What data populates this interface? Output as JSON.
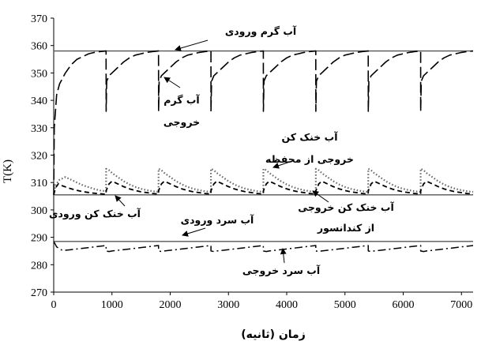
{
  "chart_data": {
    "type": "line",
    "ylabel": "T(K)",
    "xlabel": "زمان (ثانیه)",
    "xlim": [
      0,
      7200
    ],
    "ylim": [
      270,
      370
    ],
    "x_ticks": [
      "0",
      "1000",
      "2000",
      "3000",
      "4000",
      "5000",
      "6000",
      "7000"
    ],
    "y_ticks": [
      "270",
      "280",
      "290",
      "300",
      "310",
      "320",
      "330",
      "340",
      "350",
      "360",
      "370"
    ],
    "cycle_period": 900,
    "series": [
      {
        "name": "آب گرم ورودی",
        "style": "solid",
        "x": [
          0,
          7200
        ],
        "y": [
          358,
          358
        ]
      },
      {
        "name": "آب خنک کن ورودی",
        "style": "solid",
        "x": [
          0,
          7200
        ],
        "y": [
          305.5,
          305.5
        ]
      },
      {
        "name": "آب سرد ورودی",
        "style": "solid",
        "x": [
          0,
          7200
        ],
        "y": [
          288.5,
          288.5
        ]
      },
      {
        "name": "آب گرم خروجی",
        "style": "long-dash",
        "x": [
          0,
          10,
          50,
          100,
          200,
          300,
          400,
          500,
          600,
          700,
          800,
          899,
          900,
          910,
          950,
          1000,
          1100,
          1200,
          1300,
          1400,
          1500,
          1600,
          1700,
          1799,
          1800,
          1810,
          1850,
          1900,
          2000,
          2100,
          2200,
          2300,
          2400,
          2500,
          2600,
          2699,
          2700,
          2710,
          2750,
          2800,
          2900,
          3000,
          3100,
          3200,
          3300,
          3400,
          3500,
          3599,
          3600,
          3610,
          3650,
          3700,
          3800,
          3900,
          4000,
          4100,
          4200,
          4300,
          4400,
          4499,
          4500,
          4510,
          4550,
          4600,
          4700,
          4800,
          4900,
          5000,
          5100,
          5200,
          5300,
          5399,
          5400,
          5410,
          5450,
          5500,
          5600,
          5700,
          5800,
          5900,
          6000,
          6100,
          6200,
          6299,
          6300,
          6310,
          6350,
          6400,
          6500,
          6600,
          6700,
          6800,
          6900,
          7000,
          7100,
          7200
        ],
        "y": [
          305.5,
          330,
          342,
          346,
          350,
          353,
          355,
          356,
          357,
          357.5,
          357.8,
          358,
          336,
          347,
          349,
          350,
          352,
          354,
          355.5,
          356.5,
          357,
          357.5,
          357.8,
          358,
          336,
          347,
          349,
          350,
          352,
          354,
          355.5,
          356.5,
          357,
          357.5,
          357.8,
          358,
          336,
          347,
          349,
          350,
          352,
          354,
          355.5,
          356.5,
          357,
          357.5,
          357.8,
          358,
          336,
          347,
          349,
          350,
          352,
          354,
          355.5,
          356.5,
          357,
          357.5,
          357.8,
          358,
          336,
          347,
          349,
          350,
          352,
          354,
          355.5,
          356.5,
          357,
          357.5,
          357.8,
          358,
          336,
          347,
          349,
          350,
          352,
          354,
          355.5,
          356.5,
          357,
          357.5,
          357.8,
          358,
          336,
          347,
          349,
          350,
          352,
          354,
          355.5,
          356.5,
          357,
          357.5,
          357.8,
          358
        ]
      },
      {
        "name": "آب خنک کن خروجی از محفظه",
        "style": "dotted",
        "x": [
          0,
          30,
          100,
          200,
          300,
          400,
          500,
          600,
          700,
          800,
          899,
          900,
          950,
          1000,
          1100,
          1200,
          1300,
          1400,
          1500,
          1600,
          1700,
          1799,
          1800,
          1850,
          1900,
          2000,
          2100,
          2200,
          2300,
          2400,
          2500,
          2600,
          2699,
          2700,
          2750,
          2800,
          2900,
          3000,
          3100,
          3200,
          3300,
          3400,
          3500,
          3599,
          3600,
          3650,
          3700,
          3800,
          3900,
          4000,
          4100,
          4200,
          4300,
          4400,
          4499,
          4500,
          4550,
          4600,
          4700,
          4800,
          4900,
          5000,
          5100,
          5200,
          5300,
          5399,
          5400,
          5450,
          5500,
          5600,
          5700,
          5800,
          5900,
          6000,
          6100,
          6200,
          6299,
          6300,
          6350,
          6400,
          6500,
          6600,
          6700,
          6800,
          6900,
          7000,
          7100,
          7200
        ],
        "y": [
          305.5,
          309,
          311,
          312,
          311,
          310,
          309,
          308.3,
          307.6,
          307.1,
          306.8,
          315,
          314.5,
          313.5,
          312,
          310.5,
          309.3,
          308.4,
          307.7,
          307.2,
          306.8,
          306.6,
          315,
          314.5,
          313.5,
          312,
          310.5,
          309.3,
          308.4,
          307.7,
          307.2,
          306.8,
          306.6,
          315,
          314.5,
          313.5,
          312,
          310.5,
          309.3,
          308.4,
          307.7,
          307.2,
          306.8,
          306.6,
          315,
          314.5,
          313.5,
          312,
          310.5,
          309.3,
          308.4,
          307.7,
          307.2,
          306.8,
          306.6,
          315,
          314.5,
          313.5,
          312,
          310.5,
          309.3,
          308.4,
          307.7,
          307.2,
          306.8,
          306.6,
          315,
          314.5,
          313.5,
          312,
          310.5,
          309.3,
          308.4,
          307.7,
          307.2,
          306.8,
          306.6,
          315,
          314.5,
          313.5,
          312,
          310.5,
          309.3,
          308.4,
          307.7,
          307.2,
          306.8,
          306.6
        ]
      },
      {
        "name": "آب خنک کن خروجی از کندانسور",
        "style": "short-dash",
        "x": [
          0,
          30,
          80,
          150,
          250,
          350,
          450,
          550,
          650,
          750,
          850,
          899,
          900,
          950,
          1000,
          1100,
          1200,
          1300,
          1400,
          1500,
          1600,
          1700,
          1799,
          1800,
          1850,
          1900,
          2000,
          2100,
          2200,
          2300,
          2400,
          2500,
          2600,
          2699,
          2700,
          2750,
          2800,
          2900,
          3000,
          3100,
          3200,
          3300,
          3400,
          3500,
          3599,
          3600,
          3650,
          3700,
          3800,
          3900,
          4000,
          4100,
          4200,
          4300,
          4400,
          4499,
          4500,
          4550,
          4600,
          4700,
          4800,
          4900,
          5000,
          5100,
          5200,
          5300,
          5399,
          5400,
          5450,
          5500,
          5600,
          5700,
          5800,
          5900,
          6000,
          6100,
          6200,
          6299,
          6300,
          6350,
          6400,
          6500,
          6600,
          6700,
          6800,
          6900,
          7000,
          7100,
          7200
        ],
        "y": [
          305.5,
          308,
          309.5,
          308.8,
          308,
          307.4,
          306.9,
          306.5,
          306.2,
          306,
          305.8,
          305.7,
          307,
          309.5,
          310.5,
          309.5,
          308.5,
          307.7,
          307.1,
          306.6,
          306.3,
          306,
          305.8,
          307,
          309.5,
          310.5,
          309.5,
          308.5,
          307.7,
          307.1,
          306.6,
          306.3,
          306,
          305.8,
          307,
          309.5,
          310.5,
          309.5,
          308.5,
          307.7,
          307.1,
          306.6,
          306.3,
          306,
          305.8,
          307,
          309.5,
          310.5,
          309.5,
          308.5,
          307.7,
          307.1,
          306.6,
          306.3,
          306,
          305.8,
          307,
          309.5,
          310.5,
          309.5,
          308.5,
          307.7,
          307.1,
          306.6,
          306.3,
          306,
          305.8,
          307,
          309.5,
          310.5,
          309.5,
          308.5,
          307.7,
          307.1,
          306.6,
          306.3,
          306,
          305.8,
          307,
          309.5,
          310.5,
          309.5,
          308.5,
          307.7,
          307.1,
          306.6,
          306.3,
          306,
          305.8
        ]
      },
      {
        "name": "آب سرد خروجی",
        "style": "dash-dot",
        "x": [
          0,
          50,
          150,
          300,
          500,
          700,
          899,
          900,
          950,
          1000,
          1200,
          1400,
          1600,
          1799,
          1800,
          1850,
          1900,
          2100,
          2300,
          2500,
          2699,
          2700,
          2750,
          2800,
          3000,
          3200,
          3400,
          3599,
          3600,
          3650,
          3700,
          3900,
          4100,
          4300,
          4499,
          4500,
          4550,
          4600,
          4800,
          5000,
          5200,
          5399,
          5400,
          5450,
          5500,
          5700,
          5900,
          6100,
          6299,
          6300,
          6350,
          6400,
          6600,
          6800,
          7000,
          7200
        ],
        "y": [
          288.5,
          286.5,
          285.2,
          285.5,
          286,
          286.5,
          287,
          285,
          284.8,
          285,
          285.5,
          286,
          286.5,
          287,
          285,
          284.8,
          285,
          285.5,
          286,
          286.5,
          287,
          285,
          284.8,
          285,
          285.5,
          286,
          286.5,
          287,
          285,
          284.8,
          285,
          285.5,
          286,
          286.5,
          287,
          285,
          284.8,
          285,
          285.5,
          286,
          286.5,
          287,
          285,
          284.8,
          285,
          285.5,
          286,
          286.5,
          287,
          285,
          284.8,
          285,
          285.5,
          286,
          286.5,
          287
        ]
      }
    ],
    "annotations": [
      {
        "id": "hot-in",
        "lines": [
          "آب گرم ورودی"
        ]
      },
      {
        "id": "hot-out",
        "lines": [
          "آب گرم",
          "خروجی"
        ]
      },
      {
        "id": "cool-vessel",
        "lines": [
          "آب خنک کن",
          "خروجی از محفظه"
        ]
      },
      {
        "id": "cool-in",
        "lines": [
          "آب خنک کن ورودی"
        ]
      },
      {
        "id": "cool-cond",
        "lines": [
          "آب خنک کن خروجی",
          "از کندانسور"
        ]
      },
      {
        "id": "cold-in",
        "lines": [
          "آب سرد ورودی"
        ]
      },
      {
        "id": "cold-out",
        "lines": [
          "آب سرد خروجی"
        ]
      }
    ]
  }
}
